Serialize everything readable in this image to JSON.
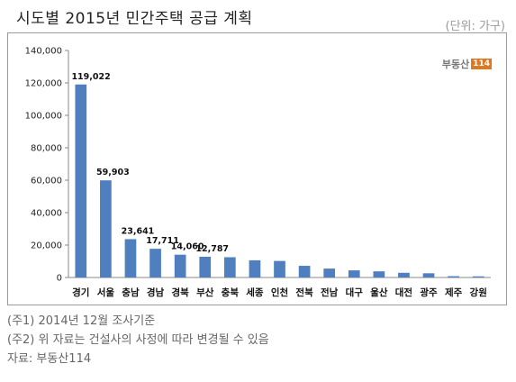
{
  "header": {
    "title": "시도별 2015년 민간주택 공급 계획",
    "unit": "(단위: 가구)"
  },
  "logo": {
    "text": "부동산",
    "badge": "114"
  },
  "chart_data": {
    "type": "bar",
    "categories": [
      "경기",
      "서울",
      "충남",
      "경남",
      "경북",
      "부산",
      "충북",
      "세종",
      "인천",
      "전북",
      "전남",
      "대구",
      "울산",
      "대전",
      "광주",
      "제주",
      "강원"
    ],
    "values": [
      119022,
      59903,
      23641,
      17711,
      14060,
      12787,
      12500,
      10600,
      10200,
      7200,
      5500,
      4400,
      3800,
      2900,
      2600,
      800,
      700
    ],
    "data_labels": [
      "119,022",
      "59,903",
      "23,641",
      "17,711",
      "14,060",
      "12,787",
      "",
      "",
      "",
      "",
      "",
      "",
      "",
      "",
      "",
      "",
      ""
    ],
    "yticks": [
      "0",
      "20,000",
      "40,000",
      "60,000",
      "80,000",
      "100,000",
      "120,000",
      "140,000"
    ],
    "ylim": [
      0,
      140000
    ],
    "grid": false,
    "bar_color": "#4f7fbf"
  },
  "notes": [
    "(주1) 2014년 12월 조사기준",
    "(주2) 위 자료는 건설사의 사정에 따라 변경될 수 있음",
    "자료: 부동산114"
  ]
}
